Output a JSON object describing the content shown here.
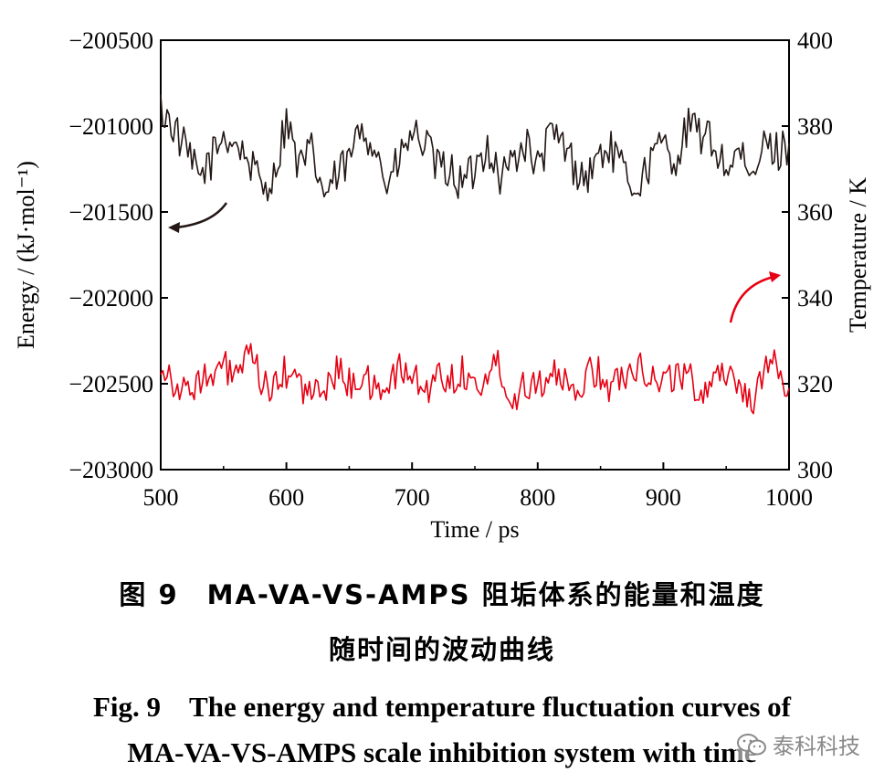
{
  "chart_data": {
    "type": "line",
    "x_range": [
      500,
      1000
    ],
    "x_ticks": [
      "500",
      "600",
      "700",
      "800",
      "900",
      "1000"
    ],
    "xlabel": "Time / ps",
    "y_left": {
      "label": "Energy / (kJ·mol⁻¹)",
      "range": [
        -203000,
        -200500
      ],
      "ticks": [
        "−200500",
        "−201000",
        "−201500",
        "−202000",
        "−202500",
        "−203000"
      ]
    },
    "y_right": {
      "label": "Temperature / K",
      "range": [
        300,
        400
      ],
      "ticks": [
        "400",
        "380",
        "360",
        "340",
        "320",
        "300"
      ]
    },
    "series": [
      {
        "axis": "left",
        "color": "#231815",
        "x_step": 10,
        "values": [
          -200900,
          -201000,
          -201150,
          -201300,
          -201200,
          -201050,
          -201100,
          -201200,
          -201350,
          -201300,
          -200950,
          -201250,
          -201150,
          -201400,
          -201300,
          -201200,
          -201000,
          -201100,
          -201350,
          -201200,
          -201050,
          -201100,
          -201250,
          -201250,
          -201350,
          -201250,
          -201100,
          -201300,
          -201200,
          -201100,
          -201250,
          -201050,
          -201100,
          -201250,
          -201300,
          -201150,
          -201150,
          -201300,
          -201350,
          -201200,
          -201100,
          -201200,
          -201000,
          -201050,
          -201100,
          -201250,
          -201150,
          -201350,
          -201100,
          -201150,
          -201100
        ]
      },
      {
        "axis": "right",
        "color": "#e60012",
        "x_step": 10,
        "values": [
          325,
          321,
          317,
          322,
          320,
          324,
          322,
          326,
          321,
          318,
          323,
          320,
          317,
          319,
          323,
          320,
          322,
          318,
          320,
          323,
          322,
          318,
          322,
          321,
          323,
          319,
          322,
          325,
          315,
          321,
          320,
          323,
          320,
          316,
          324,
          322,
          319,
          323,
          325,
          322,
          320,
          323,
          321,
          318,
          322,
          323,
          320,
          316,
          322,
          324,
          319
        ]
      }
    ],
    "annotations": [
      "arrow pointing left toward energy axis",
      "arrow pointing right toward temperature axis"
    ]
  },
  "caption": {
    "cn_line1": "图 9　MA-VA-VS-AMPS 阻垢体系的能量和温度",
    "cn_line2": "随时间的波动曲线",
    "en_line1": "Fig. 9　The energy and temperature fluctuation curves of",
    "en_line2": "MA-VA-VS-AMPS scale inhibition system with time"
  },
  "watermark": {
    "text": "泰科科技",
    "icon": "wechat-icon"
  }
}
